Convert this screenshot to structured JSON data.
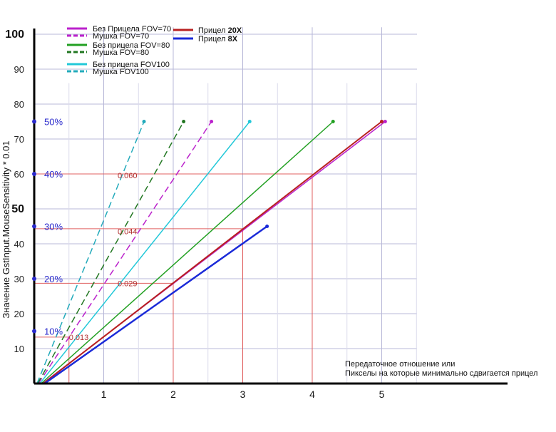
{
  "chart_data": {
    "type": "line",
    "ylabel": "Значение GstInput.MouseSensitivity * 0.01",
    "xlabel_lines": [
      "Передаточное отношение или",
      "Пикселы на которые минимально сдвигается прицел"
    ],
    "xlim": [
      0,
      5.6
    ],
    "ylim": [
      0,
      100
    ],
    "x_ticks": [
      "1",
      "2",
      "3",
      "4",
      "5"
    ],
    "y_ticks": [
      "10",
      "20",
      "30",
      "40",
      "50",
      "60",
      "70",
      "80",
      "90",
      "100"
    ],
    "y_ticks_bold": [
      "50",
      "100"
    ],
    "grid": true,
    "legend_position": "top-left",
    "percent_labels": [
      {
        "y": 15,
        "label": "10%"
      },
      {
        "y": 30,
        "label": "20%"
      },
      {
        "y": 45,
        "label": "30%"
      },
      {
        "y": 60,
        "label": "40%"
      },
      {
        "y": 75,
        "label": "50%"
      }
    ],
    "value_labels": [
      {
        "x": 0.5,
        "y": 13.3,
        "label": "0.013"
      },
      {
        "x": 1.2,
        "y": 28.7,
        "label": "0.029"
      },
      {
        "x": 1.2,
        "y": 43.6,
        "label": "0.044"
      },
      {
        "x": 1.2,
        "y": 59.6,
        "label": "0.060"
      }
    ],
    "series": [
      {
        "name": "Без Прицела FOV=70",
        "color": "#bb22cc",
        "dash": "solid",
        "width": 1.5,
        "points": [
          [
            0.12,
            0
          ],
          [
            5.05,
            75
          ]
        ]
      },
      {
        "name": "Мушка FOV=70",
        "color": "#bb22cc",
        "dash": "dashed",
        "width": 1.5,
        "points": [
          [
            0.06,
            0
          ],
          [
            2.55,
            75
          ]
        ]
      },
      {
        "name": "Без прицела FOV=80",
        "color": "#22a022",
        "dash": "solid",
        "width": 1.5,
        "points": [
          [
            0.1,
            0
          ],
          [
            4.3,
            75
          ]
        ]
      },
      {
        "name": "Мушка FOV=80",
        "color": "#227722",
        "dash": "dashed",
        "width": 1.5,
        "points": [
          [
            0.05,
            0
          ],
          [
            2.15,
            75
          ]
        ]
      },
      {
        "name": "Без прицела FOV100",
        "color": "#22c8d8",
        "dash": "solid",
        "width": 1.5,
        "points": [
          [
            0.08,
            0
          ],
          [
            3.1,
            75
          ]
        ]
      },
      {
        "name": "Мушка FOV100",
        "color": "#22aabb",
        "dash": "dashed",
        "width": 1.5,
        "points": [
          [
            0.04,
            0
          ],
          [
            1.58,
            75
          ]
        ]
      },
      {
        "name": "Прицел 20X",
        "color": "#b82020",
        "dash": "solid",
        "width": 2,
        "points": [
          [
            0.13,
            0
          ],
          [
            5.0,
            75
          ]
        ]
      },
      {
        "name": "Прицел 8X",
        "color": "#1a2ad8",
        "dash": "solid",
        "width": 2.5,
        "points": [
          [
            0.15,
            0
          ],
          [
            3.35,
            45
          ]
        ]
      }
    ],
    "legend_bold_parts": {
      "Прицел 20X": "20X",
      "Прицел 8X": "8X"
    },
    "reference_lines": [
      {
        "y": 13.3,
        "x_end": 0.5
      },
      {
        "y": 28.7,
        "x_end": 2.0
      },
      {
        "y": 44.3,
        "x_end": 3.0
      },
      {
        "y": 60,
        "x_end": 4.0
      }
    ]
  }
}
